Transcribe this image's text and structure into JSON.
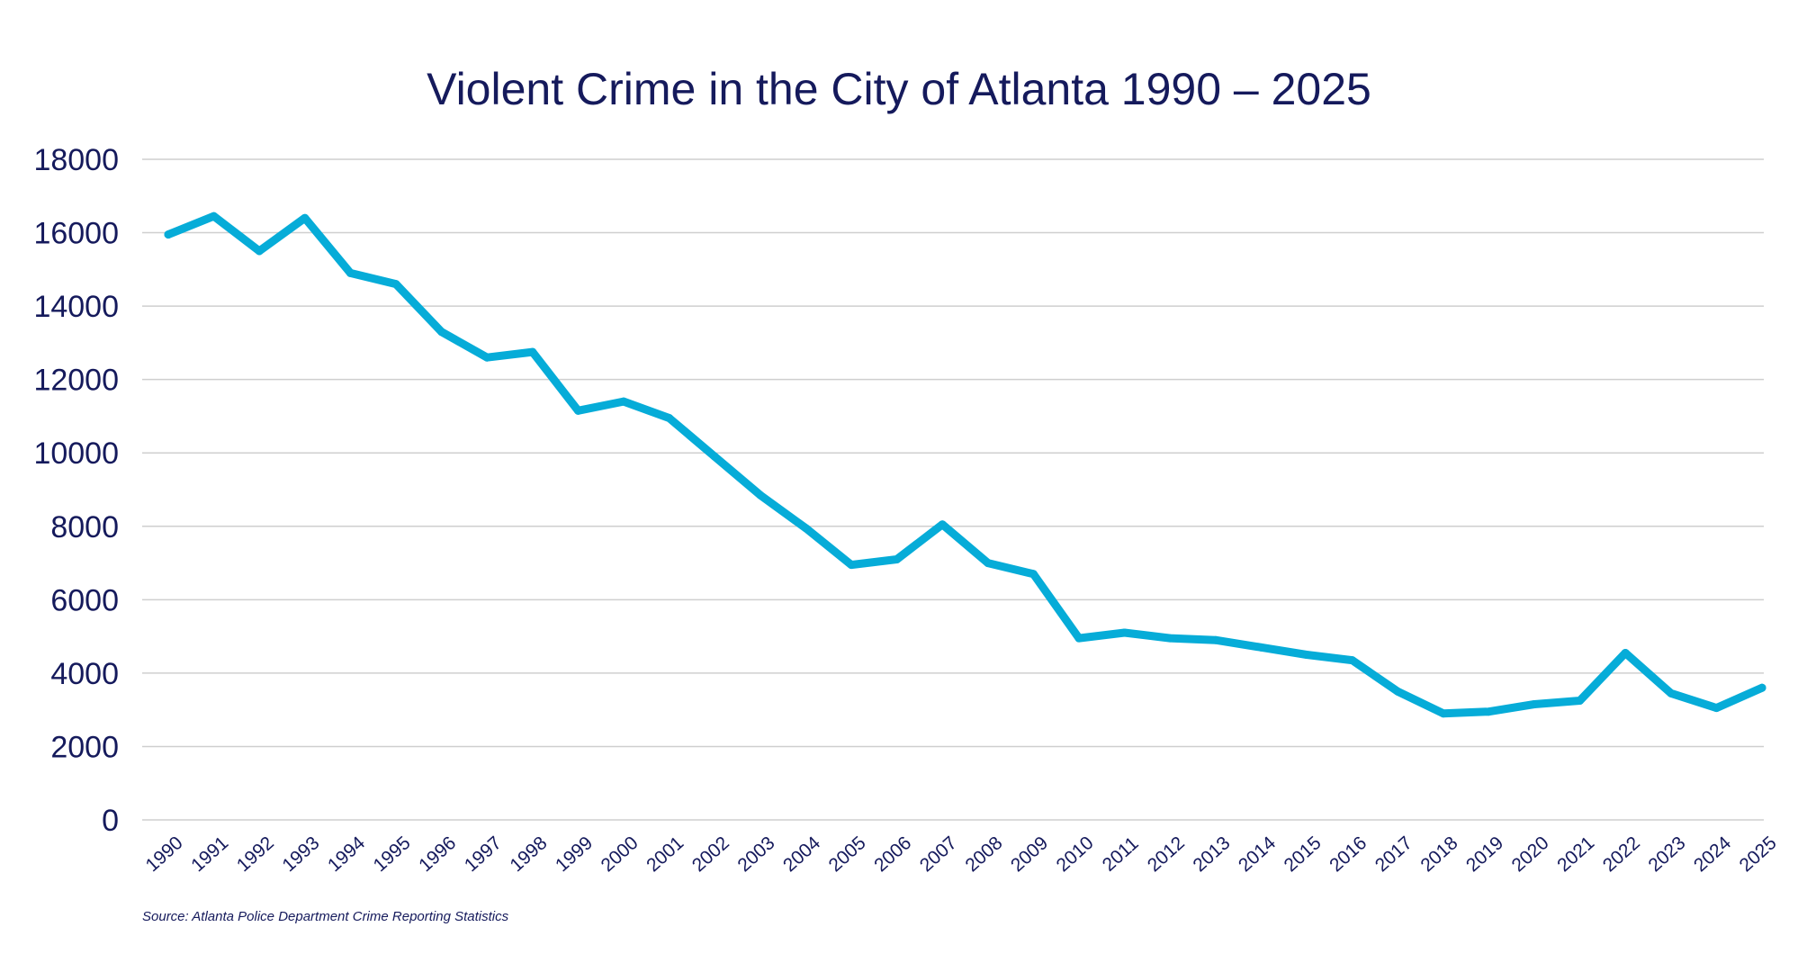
{
  "chart_data": {
    "type": "line",
    "title": "Violent Crime in the City of Atlanta 1990 – 2025",
    "xlabel": "",
    "ylabel": "",
    "ylim": [
      0,
      18000
    ],
    "y_ticks": [
      "0",
      "2000",
      "4000",
      "6000",
      "8000",
      "10000",
      "12000",
      "14000",
      "16000",
      "18000"
    ],
    "x": [
      "1990",
      "1991",
      "1992",
      "1993",
      "1994",
      "1995",
      "1996",
      "1997",
      "1998",
      "1999",
      "2000",
      "2001",
      "2002",
      "2003",
      "2004",
      "2005",
      "2006",
      "2007",
      "2008",
      "2009",
      "2010",
      "2011",
      "2012",
      "2013",
      "2014",
      "2015",
      "2016",
      "2017",
      "2018",
      "2019",
      "2020",
      "2021",
      "2022",
      "2023",
      "2024",
      "2025"
    ],
    "series": [
      {
        "values": [
          15950,
          16450,
          15500,
          16400,
          14900,
          14600,
          13300,
          12600,
          12750,
          11150,
          11400,
          10950,
          9900,
          8850,
          7950,
          6950,
          7100,
          8050,
          7000,
          6700,
          4950,
          5100,
          4950,
          4900,
          4700,
          4500,
          4350,
          3500,
          2900,
          2950,
          3150,
          3250,
          4550,
          3450,
          3050,
          3600
        ],
        "color": "#06acd8"
      }
    ],
    "grid": "horizontal",
    "legend": "none",
    "source": "Source: Atlanta Police Department Crime Reporting Statistics"
  }
}
